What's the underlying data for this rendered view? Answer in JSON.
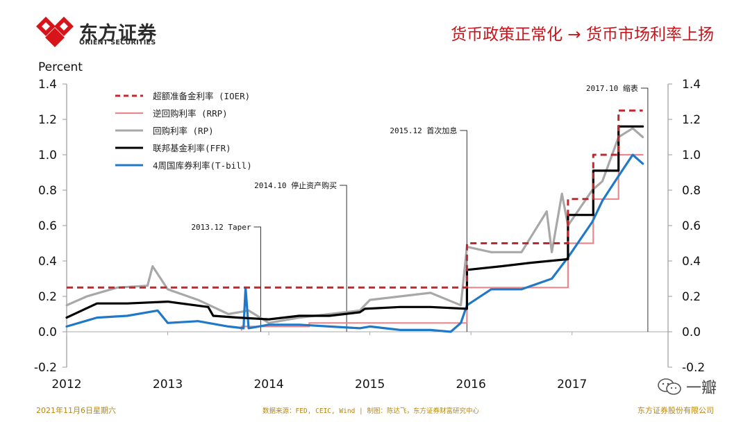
{
  "header": {
    "logo_cn": "东方证券",
    "logo_en": "ORIENT SECURITIES",
    "headline": "货币政策正常化 → 货币市场利率上扬"
  },
  "footer": {
    "date": "2021年11月6日星期六",
    "source": "数据来源：FED, CEIC, Wind | 制图：陈达飞，东方证券财富研究中心",
    "company": "东方证券股份有限公司",
    "watermark": "一瓣"
  },
  "colors": {
    "ioer": "#c0282d",
    "rrp": "#e8888c",
    "rp": "#a8a8a8",
    "ffr": "#000000",
    "tbill": "#1f78c8",
    "headline": "#c4161c",
    "brand": "#d7141a"
  },
  "chart_data": {
    "type": "line",
    "ylabel": "Percent",
    "ylim": [
      -0.2,
      1.4
    ],
    "yticks": [
      "-0.2",
      "0.0",
      "0.2",
      "0.4",
      "0.6",
      "0.8",
      "1.0",
      "1.2",
      "1.4"
    ],
    "xticks": [
      "2012",
      "2013",
      "2014",
      "2015",
      "2016",
      "2017"
    ],
    "legend_position": "top-left",
    "series": [
      {
        "name": "超额准备金利率 (IOER)",
        "key": "ioer",
        "style": "dashed",
        "x": [
          2012.0,
          2015.96,
          2015.96,
          2016.96,
          2016.96,
          2017.21,
          2017.21,
          2017.46,
          2017.46,
          2017.7
        ],
        "y": [
          0.25,
          0.25,
          0.5,
          0.5,
          0.75,
          0.75,
          1.0,
          1.0,
          1.25,
          1.25
        ]
      },
      {
        "name": "逆回购利率 (RRP)",
        "key": "rrp",
        "style": "solid",
        "x": [
          2013.73,
          2013.73,
          2014.4,
          2014.4,
          2015.0,
          2015.0,
          2015.96,
          2015.96,
          2016.96,
          2016.96,
          2017.21,
          2017.21,
          2017.46,
          2017.46,
          2017.7
        ],
        "y": [
          0.01,
          0.03,
          0.03,
          0.05,
          0.05,
          0.05,
          0.05,
          0.25,
          0.25,
          0.5,
          0.5,
          0.75,
          0.75,
          1.0,
          1.0
        ]
      },
      {
        "name": "回购利率 (RP)",
        "key": "rp",
        "style": "solid",
        "x": [
          2012.0,
          2012.2,
          2012.5,
          2012.8,
          2012.85,
          2013.0,
          2013.3,
          2013.6,
          2013.8,
          2014.0,
          2014.3,
          2014.6,
          2014.9,
          2015.0,
          2015.3,
          2015.6,
          2015.9,
          2015.96,
          2016.2,
          2016.5,
          2016.75,
          2016.8,
          2016.9,
          2016.96,
          2017.2,
          2017.3,
          2017.46,
          2017.6,
          2017.7
        ],
        "y": [
          0.15,
          0.2,
          0.25,
          0.26,
          0.37,
          0.24,
          0.18,
          0.1,
          0.12,
          0.05,
          0.08,
          0.1,
          0.12,
          0.18,
          0.2,
          0.22,
          0.15,
          0.48,
          0.45,
          0.45,
          0.68,
          0.45,
          0.78,
          0.6,
          0.8,
          0.85,
          1.1,
          1.15,
          1.1
        ]
      },
      {
        "name": "联邦基金利率(FFR)",
        "key": "ffr",
        "style": "solid",
        "x": [
          2012.0,
          2012.3,
          2012.6,
          2013.0,
          2013.4,
          2013.45,
          2013.7,
          2014.0,
          2014.3,
          2014.6,
          2014.9,
          2014.95,
          2015.3,
          2015.6,
          2015.96,
          2015.96,
          2016.3,
          2016.6,
          2016.96,
          2016.96,
          2017.21,
          2017.21,
          2017.46,
          2017.46,
          2017.7
        ],
        "y": [
          0.08,
          0.16,
          0.16,
          0.17,
          0.14,
          0.09,
          0.08,
          0.07,
          0.09,
          0.09,
          0.11,
          0.13,
          0.14,
          0.14,
          0.13,
          0.35,
          0.37,
          0.39,
          0.41,
          0.66,
          0.66,
          0.91,
          0.91,
          1.16,
          1.16
        ]
      },
      {
        "name": "4周国库券利率(T-bill)",
        "key": "tbill",
        "style": "solid",
        "x": [
          2012.0,
          2012.3,
          2012.6,
          2012.9,
          2013.0,
          2013.3,
          2013.6,
          2013.75,
          2013.77,
          2013.8,
          2014.0,
          2014.3,
          2014.6,
          2014.9,
          2015.0,
          2015.3,
          2015.6,
          2015.8,
          2015.9,
          2015.96,
          2016.2,
          2016.5,
          2016.8,
          2016.96,
          2017.2,
          2017.3,
          2017.46,
          2017.6,
          2017.7
        ],
        "y": [
          0.03,
          0.08,
          0.09,
          0.12,
          0.05,
          0.06,
          0.03,
          0.02,
          0.25,
          0.02,
          0.04,
          0.04,
          0.03,
          0.02,
          0.03,
          0.01,
          0.01,
          0.0,
          0.05,
          0.15,
          0.24,
          0.24,
          0.3,
          0.42,
          0.62,
          0.74,
          0.88,
          1.0,
          0.95
        ]
      }
    ],
    "annotations": [
      {
        "text": "2013.12 Taper",
        "x": 2013.92
      },
      {
        "text": "2014.10 停止资产购买",
        "x": 2014.77
      },
      {
        "text": "2015.12 首次加息",
        "x": 2015.96
      },
      {
        "text": "2017.10 缩表",
        "x": 2017.75
      }
    ]
  }
}
